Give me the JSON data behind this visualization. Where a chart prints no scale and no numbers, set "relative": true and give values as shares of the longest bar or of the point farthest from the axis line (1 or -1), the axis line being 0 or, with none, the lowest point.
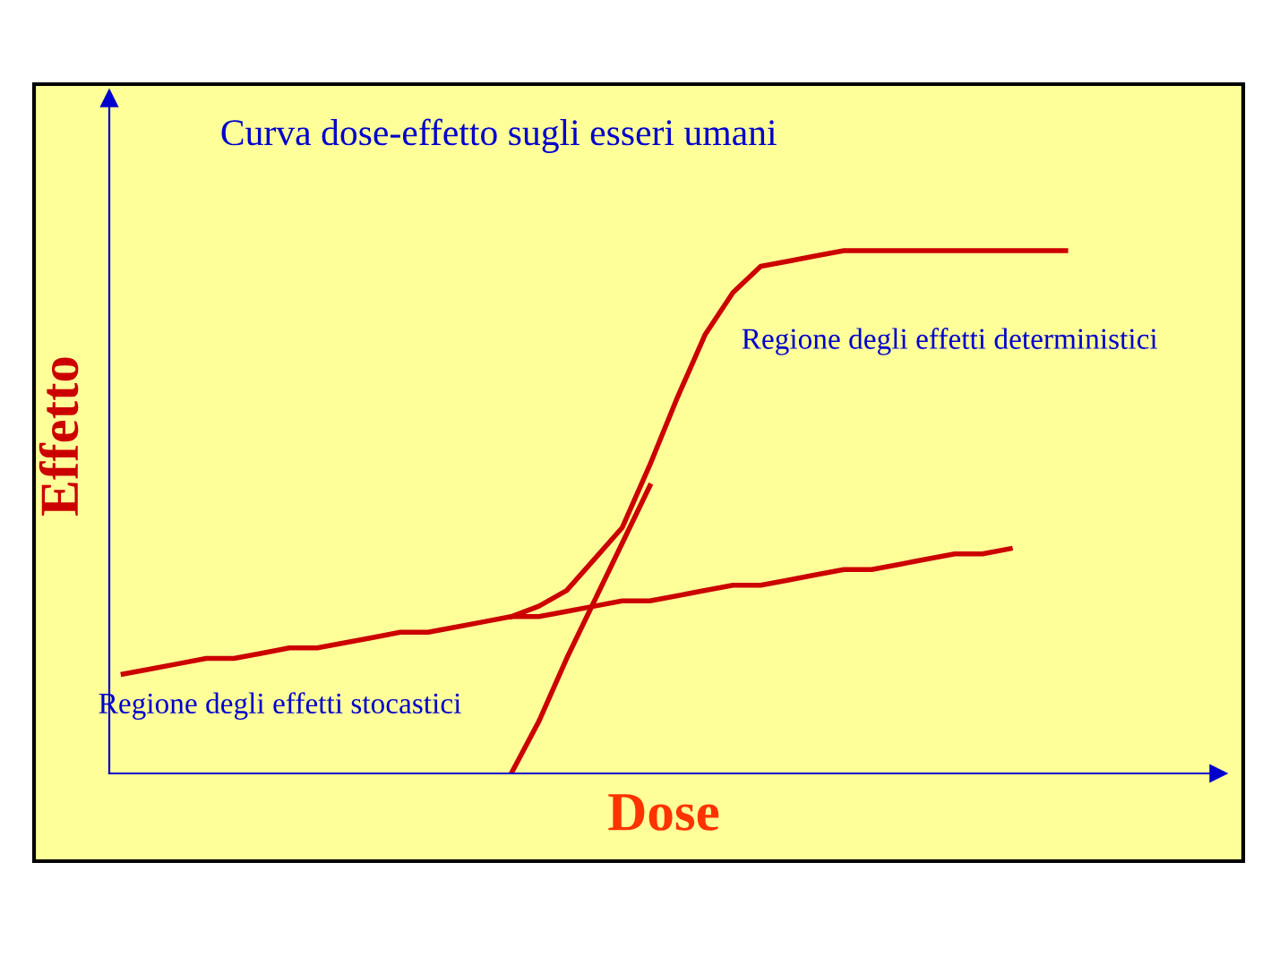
{
  "chart_data": {
    "type": "line",
    "relative": true,
    "title": "Curva dose-effetto sugli esseri umani",
    "xlabel": "Dose",
    "ylabel": "Effetto",
    "annotations": [
      "Regione degli effetti deterministici",
      "Regione degli effetti stocastici"
    ],
    "categories": [
      null,
      null,
      null,
      null,
      null,
      null,
      null,
      null,
      null,
      null,
      null,
      null,
      null,
      null,
      null,
      null,
      null,
      null,
      null,
      null,
      null,
      null,
      null,
      null,
      null,
      null,
      null,
      null,
      null,
      null,
      null,
      null,
      null,
      null,
      null,
      null,
      null,
      null,
      null,
      null
    ],
    "series": [
      {
        "color": "#cc0000",
        "values": [
          0.19,
          0.2,
          0.21,
          0.22,
          0.22,
          0.23,
          0.24,
          0.24,
          0.25,
          0.26,
          0.27,
          0.27,
          0.28,
          0.29,
          0.3,
          0.3,
          0.31,
          0.32,
          0.33,
          0.33,
          0.34,
          0.35,
          0.36,
          0.36,
          0.37,
          0.38,
          0.39,
          0.39,
          0.4,
          0.41,
          0.42,
          0.42,
          0.43,
          null,
          null,
          null,
          null,
          null,
          null,
          null
        ]
      },
      {
        "color": "#cc0000",
        "values": [
          null,
          null,
          null,
          null,
          null,
          null,
          null,
          null,
          null,
          null,
          null,
          null,
          null,
          null,
          0.3,
          0.32,
          0.35,
          0.41,
          0.47,
          0.59,
          0.72,
          0.84,
          0.92,
          0.97,
          0.98,
          0.99,
          1.0,
          1.0,
          1.0,
          1.0,
          1.0,
          1.0,
          1.0,
          1.0,
          1.0,
          null,
          null,
          null,
          null,
          null
        ]
      },
      {
        "color": "#cc0000",
        "values": [
          null,
          null,
          null,
          null,
          null,
          null,
          null,
          null,
          null,
          null,
          null,
          null,
          null,
          null,
          0.0,
          0.1,
          0.22,
          0.33,
          0.44,
          0.55,
          null,
          null,
          null,
          null,
          null,
          null,
          null,
          null,
          null,
          null,
          null,
          null,
          null,
          null,
          null,
          null,
          null,
          null,
          null,
          null
        ]
      }
    ],
    "marker": "none",
    "line_style": "solid"
  }
}
